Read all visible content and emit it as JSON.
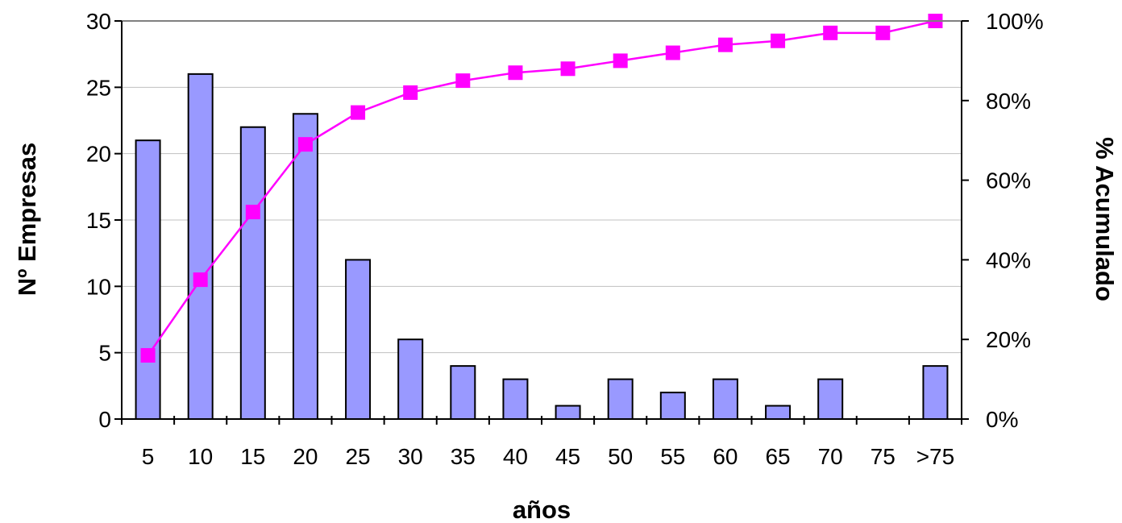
{
  "chart_data": {
    "type": "bar",
    "categories": [
      "5",
      "10",
      "15",
      "20",
      "25",
      "30",
      "35",
      "40",
      "45",
      "50",
      "55",
      "60",
      "65",
      "70",
      "75",
      ">75"
    ],
    "series": [
      {
        "type": "bar",
        "axis": "left",
        "values": [
          21,
          26,
          22,
          23,
          12,
          6,
          4,
          3,
          1,
          3,
          2,
          3,
          1,
          3,
          0,
          4
        ],
        "color": "#9999ff"
      },
      {
        "type": "line",
        "axis": "right",
        "values": [
          16,
          35,
          52,
          69,
          77,
          82,
          85,
          87,
          88,
          90,
          92,
          94,
          95,
          97,
          97,
          100
        ],
        "color": "#ff00ff"
      }
    ],
    "xlabel": "años",
    "ylabel": "Nº Empresas",
    "y2label": "% Acumulado",
    "ylim": [
      0,
      30
    ],
    "y2lim": [
      0,
      100
    ],
    "yticks": [
      "0",
      "5",
      "10",
      "15",
      "20",
      "25",
      "30"
    ],
    "y2ticks": [
      "0%",
      "20%",
      "40%",
      "60%",
      "80%",
      "100%"
    ],
    "grid": true
  }
}
